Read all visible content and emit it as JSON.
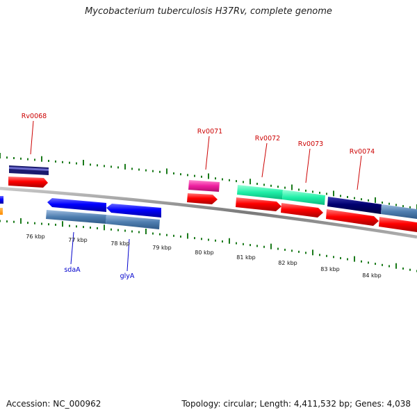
{
  "title": "Mycobacterium tuberculosis H37Rv, complete genome",
  "footer": {
    "accession": "Accession: NC_000962",
    "summary": "Topology: circular; Length: 4,411,532 bp; Genes: 4,038"
  },
  "scale_ticks": [
    "76 kbp",
    "77 kbp",
    "78 kbp",
    "79 kbp",
    "80 kbp",
    "81 kbp",
    "82 kbp",
    "83 kbp",
    "84 kbp"
  ],
  "labels": {
    "top": [
      "Rv0068",
      "Rv0071",
      "Rv0072",
      "Rv0073",
      "Rv0074"
    ],
    "bottom": [
      "sdaA",
      "glyA"
    ]
  },
  "colors": {
    "cds": "#ff0000",
    "forward_feature": "#0000ff",
    "reverse_feature": "#4f7eb0",
    "top_label": "#cc0000",
    "bottom_label": "#0000cc",
    "tick": "#1a7a1a",
    "backbone": "#888888"
  }
}
